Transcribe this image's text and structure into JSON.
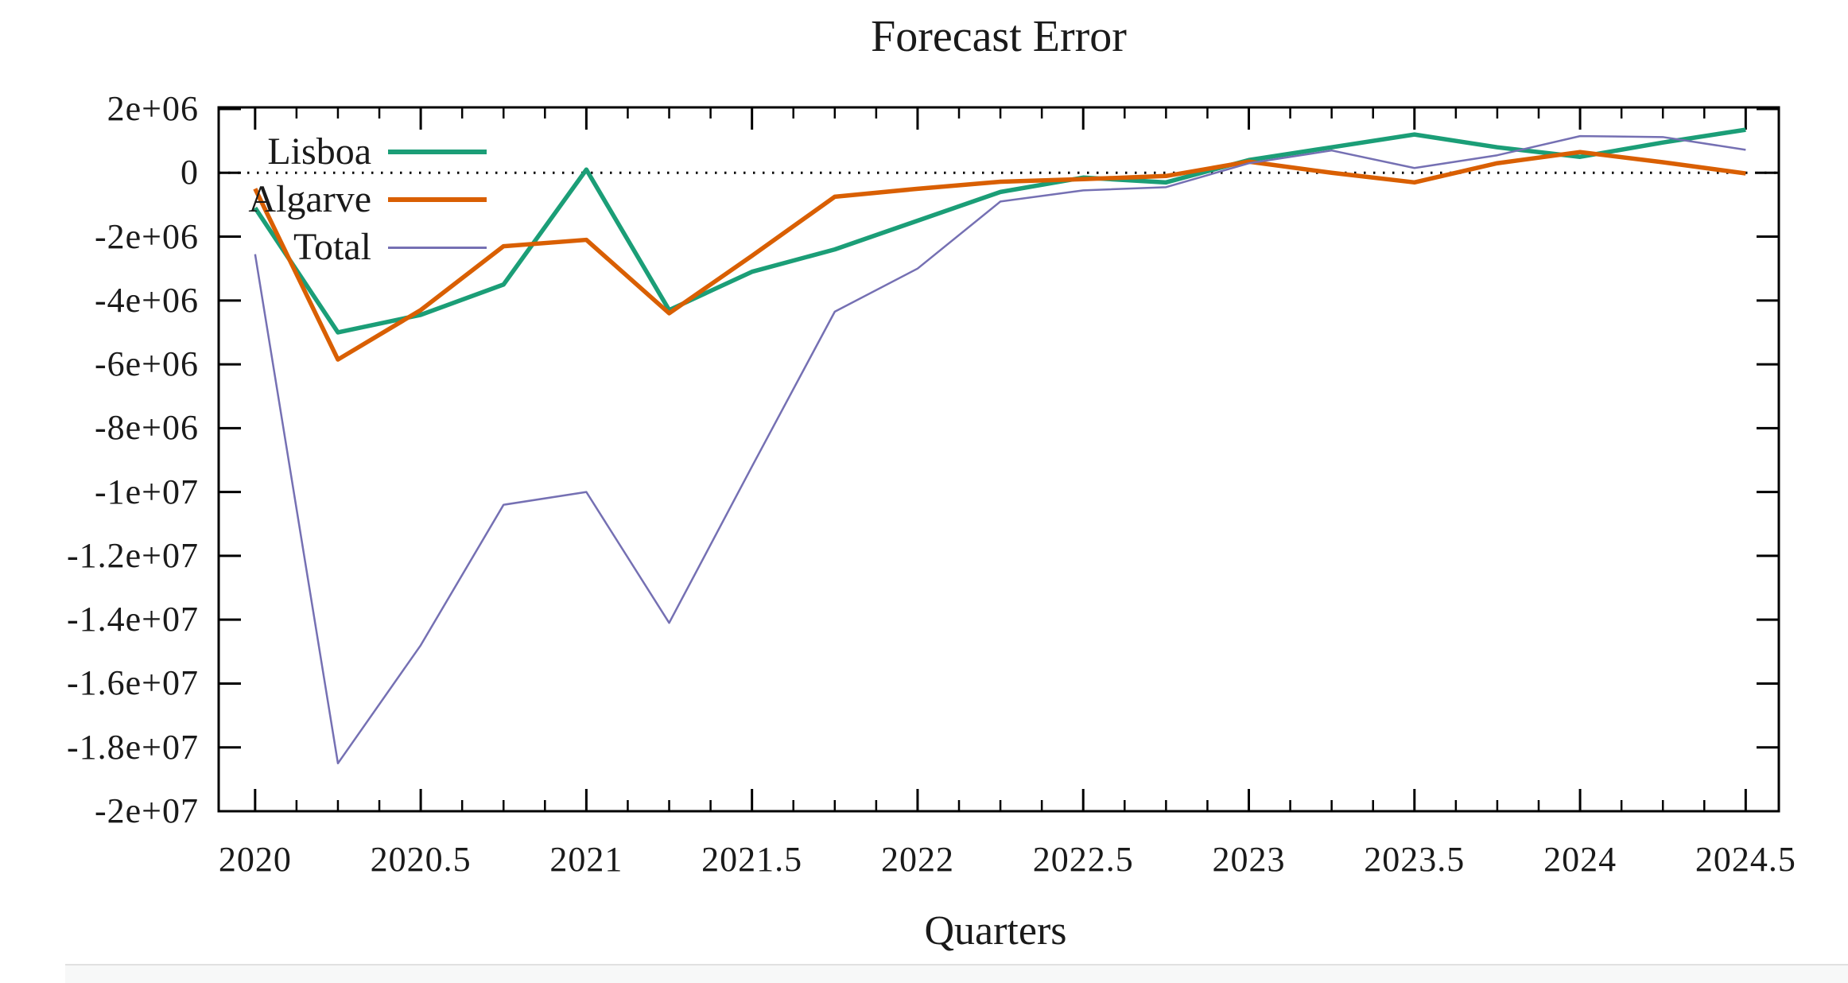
{
  "page": {
    "background": "#ffffff",
    "text_color": "#1a1a1a"
  },
  "chart_data": {
    "type": "line",
    "title": "Forecast Error",
    "xlabel": "Quarters",
    "ylabel": "",
    "legend_position": "top-left-inside",
    "grid": "dotted-zero-line-only",
    "xlim": [
      2019.89,
      2024.6
    ],
    "ylim": [
      -20000000,
      2050000
    ],
    "x_axis": {
      "tick_labels": [
        "2020",
        "2020.5",
        "2021",
        "2021.5",
        "2022",
        "2022.5",
        "2023",
        "2023.5",
        "2024",
        "2024.5"
      ],
      "tick_values": [
        2020,
        2020.5,
        2021,
        2021.5,
        2022,
        2022.5,
        2023,
        2023.5,
        2024,
        2024.5
      ],
      "minor_tick_step": 0.125
    },
    "y_axis": {
      "tick_labels": [
        "2e+06",
        "0",
        "-2e+06",
        "-4e+06",
        "-6e+06",
        "-8e+06",
        "-1e+07",
        "-1.2e+07",
        "-1.4e+07",
        "-1.6e+07",
        "-1.8e+07",
        "-2e+07"
      ],
      "tick_values": [
        2000000,
        0,
        -2000000,
        -4000000,
        -6000000,
        -8000000,
        -10000000,
        -12000000,
        -14000000,
        -16000000,
        -18000000,
        -20000000
      ]
    },
    "x": [
      2020,
      2020.25,
      2020.5,
      2020.75,
      2021,
      2021.25,
      2021.5,
      2021.75,
      2022,
      2022.25,
      2022.5,
      2022.75,
      2023,
      2023.25,
      2023.5,
      2023.75,
      2024,
      2024.25,
      2024.5
    ],
    "series": [
      {
        "name": "Lisboa",
        "color": "#1b9e77",
        "stroke_width": 5.5,
        "values": [
          -1100000,
          -5000000,
          -4450000,
          -3500000,
          100000,
          -4300000,
          -3100000,
          -2400000,
          -1500000,
          -600000,
          -150000,
          -300000,
          400000,
          800000,
          1200000,
          800000,
          500000,
          950000,
          1350000
        ]
      },
      {
        "name": "Algarve",
        "color": "#d95f02",
        "stroke_width": 5.5,
        "values": [
          -500000,
          -5850000,
          -4300000,
          -2300000,
          -2100000,
          -4400000,
          -2600000,
          -750000,
          -500000,
          -280000,
          -200000,
          -100000,
          350000,
          0,
          -300000,
          300000,
          650000,
          330000,
          -20000
        ]
      },
      {
        "name": "Total",
        "color": "#7570b3",
        "stroke_width": 2.5,
        "values": [
          -2550000,
          -18500000,
          -14800000,
          -10400000,
          -10000000,
          -14100000,
          -9200000,
          -4350000,
          -3000000,
          -900000,
          -550000,
          -450000,
          300000,
          700000,
          150000,
          550000,
          1150000,
          1120000,
          720000
        ]
      }
    ]
  }
}
